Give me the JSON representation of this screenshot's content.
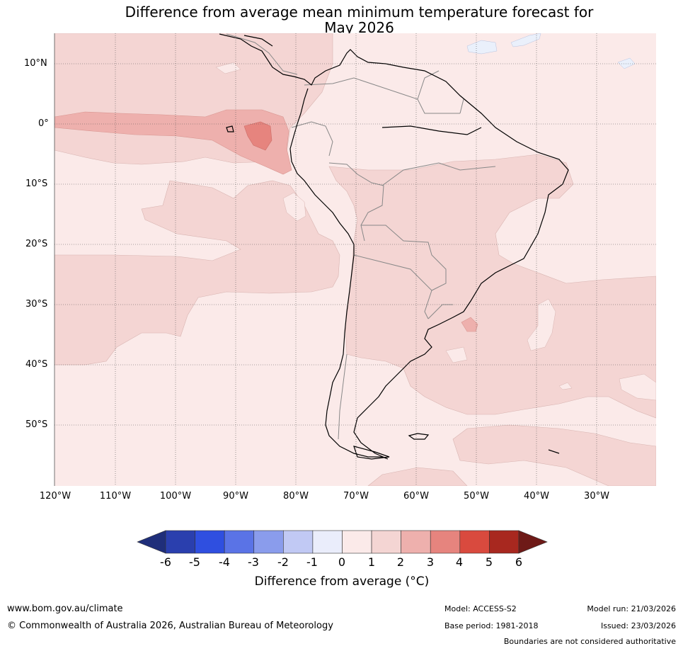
{
  "title": {
    "line1": "Difference from average mean minimum temperature forecast for",
    "line2": "May 2026"
  },
  "map": {
    "lat_labels": [
      "10°N",
      "0°",
      "10°S",
      "20°S",
      "30°S",
      "40°S",
      "50°S"
    ],
    "lon_labels": [
      "120°W",
      "110°W",
      "100°W",
      "90°W",
      "80°W",
      "70°W",
      "60°W",
      "50°W",
      "40°W",
      "30°W"
    ],
    "colors": {
      "band_0_1": "#fbeae9",
      "band_1_2": "#f4d5d3",
      "band_2_3": "#eeb0ad",
      "band_3_4": "#e6847e",
      "band_minus1_0": "#eaf0fb",
      "coast": "#000000",
      "border": "#888888",
      "grid": "#555555"
    }
  },
  "colorbar": {
    "ticks": [
      "-6",
      "-5",
      "-4",
      "-3",
      "-2",
      "-1",
      "0",
      "1",
      "2",
      "3",
      "4",
      "5",
      "6"
    ],
    "colors": [
      "#1f2e7a",
      "#2a3fae",
      "#2f4fe0",
      "#5a73e6",
      "#8a9cec",
      "#c1c9f4",
      "#eaedfb",
      "#fbeae9",
      "#f4d5d3",
      "#eeb0ad",
      "#e6847e",
      "#d94a3e",
      "#a8281f",
      "#6e1a17"
    ],
    "label": "Difference from average (°C)"
  },
  "footer": {
    "url": "www.bom.gov.au/climate",
    "copyright": "© Commonwealth of Australia 2026, Australian Bureau of Meteorology",
    "model": "Model: ACCESS-S2",
    "base_period": "Base period: 1981-2018",
    "model_run": "Model run: 21/03/2026",
    "issued": "Issued: 23/03/2026",
    "disclaimer": "Boundaries are not considered authoritative"
  }
}
